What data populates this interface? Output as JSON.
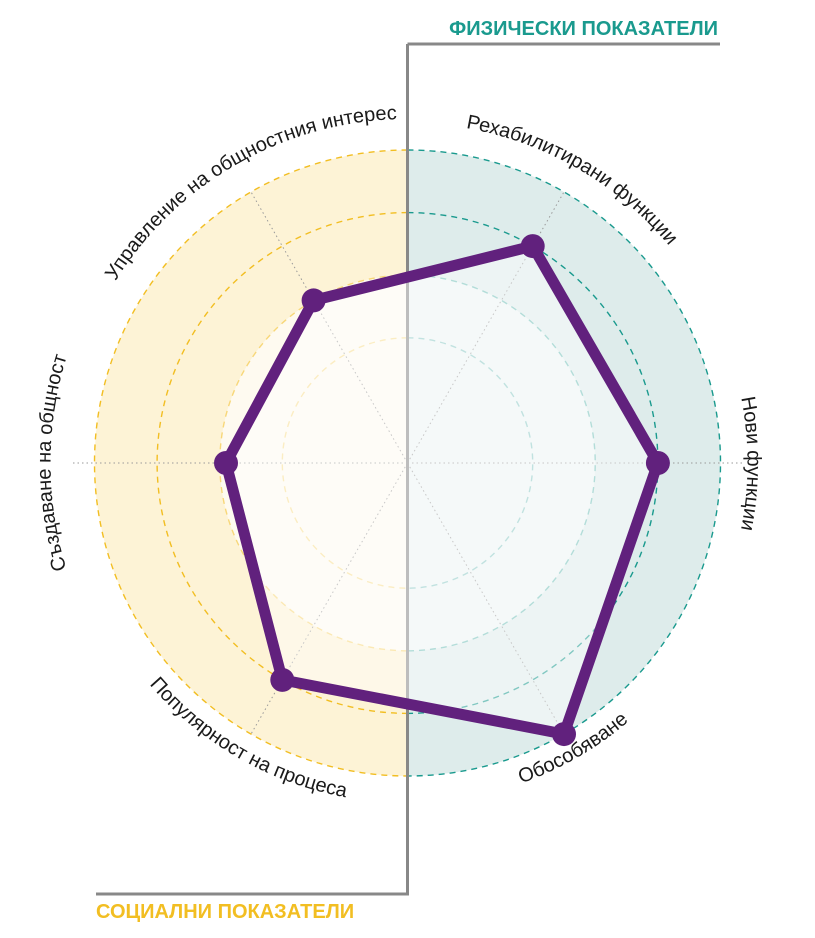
{
  "colors": {
    "physical": "#1a9a8e",
    "social": "#f2be22",
    "series": "#61217d"
  },
  "sections": {
    "physical_title": "ФИЗИЧЕСКИ ПОКАЗАТЕЛИ",
    "social_title": "СОЦИАЛНИ ПОКАЗАТЕЛИ"
  },
  "chart_data": {
    "type": "radar",
    "categories": [
      "Нови функции",
      "Обособяване",
      "Популярност на процеса",
      "Създаване на общност",
      "Управление на общностния интерес",
      "Рехабилитирани функции"
    ],
    "groups": [
      {
        "name": "ФИЗИЧЕСКИ ПОКАЗАТЕЛИ",
        "categories": [
          "Рехабилитирани функции",
          "Нови функции",
          "Обособяване"
        ]
      },
      {
        "name": "СОЦИАЛНИ ПОКАЗАТЕЛИ",
        "categories": [
          "Популярност на процеса",
          "Създаване на общност",
          "Управление на общностния интерес"
        ]
      }
    ],
    "rings": 4,
    "scale_max": 5,
    "series": [
      {
        "values": [
          4.0,
          5.0,
          4.0,
          2.9,
          3.0,
          4.0
        ]
      }
    ]
  }
}
